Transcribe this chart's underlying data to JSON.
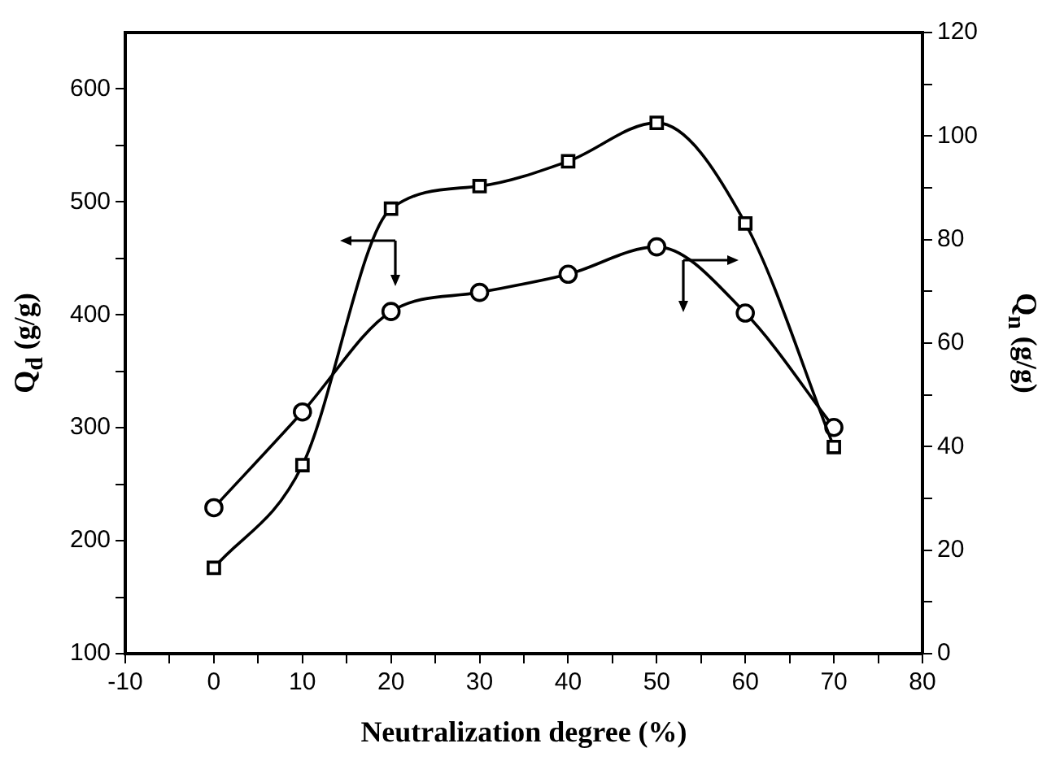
{
  "chart_data": {
    "type": "line",
    "xlabel": "Neutralization degree (%)",
    "ylabel": "Q$_{d}$ (g/g)",
    "y2label": "Q$_{n}$ (g/g)",
    "x": [
      0,
      10,
      20,
      30,
      40,
      50,
      60,
      70
    ],
    "xlim": [
      -10,
      80
    ],
    "xticks": [
      -10,
      {
        "value": -5,
        "label": null
      },
      0,
      {
        "value": 5,
        "label": null
      },
      10,
      {
        "value": 15,
        "label": null
      },
      20,
      {
        "value": 25,
        "label": null
      },
      30,
      {
        "value": 35,
        "label": null
      },
      40,
      {
        "value": 45,
        "label": null
      },
      50,
      {
        "value": 55,
        "label": null
      },
      60,
      {
        "value": 65,
        "label": null
      },
      70,
      {
        "value": 75,
        "label": null
      },
      80
    ],
    "ylim": [
      100,
      650
    ],
    "yticks": [
      100,
      {
        "value": 150,
        "label": null
      },
      200,
      {
        "value": 250,
        "label": null
      },
      300,
      {
        "value": 350,
        "label": null
      },
      400,
      {
        "value": 450,
        "label": null
      },
      500,
      {
        "value": 550,
        "label": null
      },
      600
    ],
    "y2lim": [
      0,
      120
    ],
    "y2ticks": [
      0,
      {
        "value": 10,
        "label": null
      },
      20,
      {
        "value": 30,
        "label": null
      },
      40,
      {
        "value": 50,
        "label": null
      },
      60,
      {
        "value": 70,
        "label": null
      },
      80,
      {
        "value": 90,
        "label": null
      },
      100,
      {
        "value": 110,
        "label": null
      },
      120
    ],
    "series": [
      {
        "color": "#000000",
        "marker": "square",
        "axis": "y",
        "values": [
          176,
          267,
          494,
          514,
          536,
          570,
          481,
          283
        ]
      },
      {
        "color": "#000000",
        "marker": "circle",
        "axis": "y2",
        "values": [
          28.2,
          46.7,
          66.1,
          69.8,
          73.3,
          78.6,
          65.8,
          43.7
        ]
      }
    ]
  }
}
